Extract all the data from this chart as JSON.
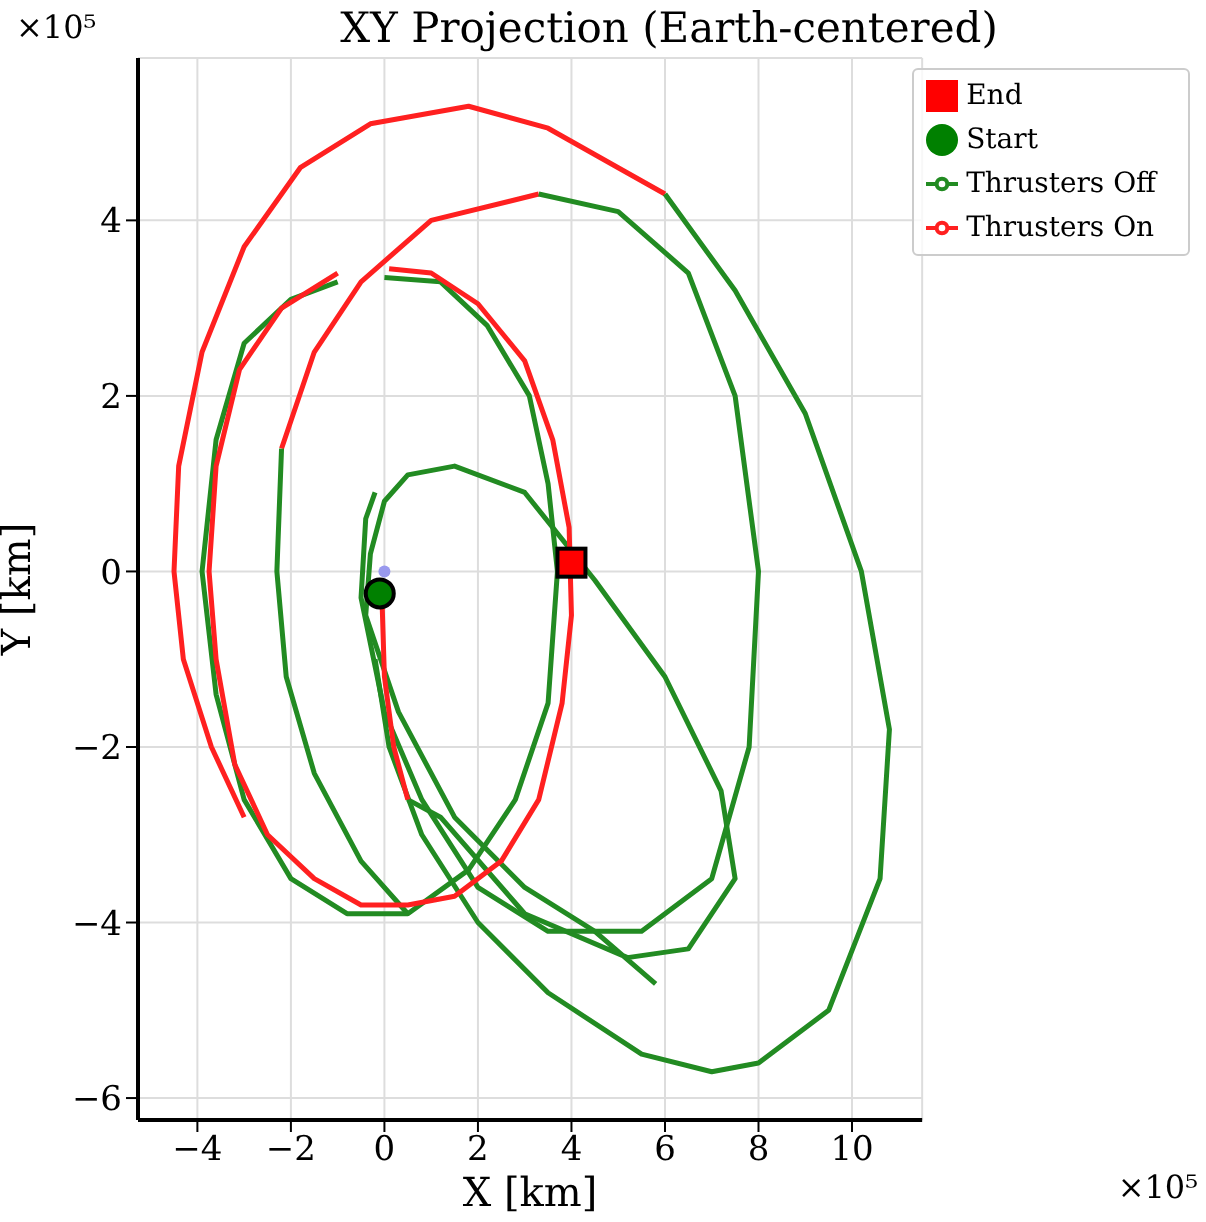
{
  "chart_data": {
    "type": "line",
    "title": "XY Projection (Earth-centered)",
    "xlabel": "X [km]",
    "ylabel": "Y [km]",
    "xlim": [
      -5.27,
      11.5
    ],
    "ylim": [
      -6.25,
      5.85
    ],
    "xticks": [
      -4,
      -2,
      0,
      2,
      4,
      6,
      8,
      10
    ],
    "yticks": [
      -6,
      -4,
      -2,
      0,
      2,
      4
    ],
    "grid": true,
    "legend": "top right",
    "marker": "none",
    "annotations": [
      "×10⁵",
      "×10⁵"
    ],
    "series": [
      {
        "name": "Thrusters Off",
        "color": "#228b22",
        "x": [
          0.5,
          1.2,
          3.0,
          5.2,
          6.5,
          7.5,
          7.2,
          6.0,
          4.5,
          3.0,
          1.5,
          0.5,
          0,
          -0.3,
          -0.4,
          0.3,
          1.5,
          3.0,
          4.5,
          5.8
        ],
        "values": [
          -2.6,
          -2.8,
          -3.9,
          -4.4,
          -4.3,
          -3.5,
          -2.5,
          -1.2,
          -0.1,
          0.9,
          1.2,
          1.1,
          0.8,
          0.2,
          -0.5,
          -1.6,
          -2.8,
          -3.6,
          -4.1,
          -4.7
        ]
      },
      {
        "name": "Thrusters On",
        "color": "#ff2020",
        "x": [
          -3.0,
          -3.7,
          -4.3,
          -4.5,
          -4.4,
          -3.9,
          -3.0,
          -1.8,
          -0.3,
          1.8,
          3.5,
          5.0,
          6.0
        ],
        "values": [
          -2.8,
          -2.0,
          -1.0,
          0,
          1.2,
          2.5,
          3.7,
          4.6,
          5.1,
          5.3,
          5.05,
          4.6,
          4.3
        ]
      },
      {
        "color": "#228b22",
        "x": [
          6.0,
          7.5,
          9.0,
          10.2,
          10.8,
          10.6,
          9.5,
          8.0,
          7.0,
          5.5,
          3.5,
          2.0,
          0.8,
          0.1,
          -0.2
        ],
        "values": [
          4.3,
          3.2,
          1.8,
          0,
          -1.8,
          -3.5,
          -5.0,
          -5.6,
          -5.7,
          -5.5,
          -4.8,
          -4.0,
          -3.0,
          -2.0,
          -1.0
        ]
      },
      {
        "color": "#ff2020",
        "x": [
          -2.2,
          -1.5,
          -0.5,
          1.0,
          3.3
        ],
        "values": [
          1.4,
          2.5,
          3.3,
          4.0,
          4.3
        ]
      },
      {
        "color": "#228b22",
        "x": [
          3.3,
          5.0,
          6.5,
          7.5,
          8.0,
          7.8,
          7.0,
          5.5,
          3.5,
          2.0,
          0.8,
          0,
          -0.5,
          -0.4,
          -0.2
        ],
        "values": [
          4.3,
          4.1,
          3.4,
          2.0,
          0,
          -2.0,
          -3.5,
          -4.1,
          -4.1,
          -3.6,
          -2.6,
          -1.6,
          -0.3,
          0.6,
          0.9
        ]
      },
      {
        "color": "#228b22",
        "x": [
          -2.2,
          -2.3,
          -2.1,
          -1.5,
          -0.5,
          0.5
        ],
        "values": [
          1.4,
          0,
          -1.2,
          -2.3,
          -3.3,
          -3.9
        ]
      },
      {
        "color": "#228b22",
        "x": [
          0,
          1.2,
          2.2,
          3.1,
          3.5,
          3.7,
          3.5,
          2.8,
          1.8,
          0.5,
          -0.8,
          -2.0,
          -3.0,
          -3.6,
          -3.9,
          -3.6,
          -3.0,
          -2.0,
          -1.0
        ],
        "values": [
          3.35,
          3.3,
          2.8,
          2.0,
          1.0,
          0,
          -1.5,
          -2.6,
          -3.4,
          -3.9,
          -3.9,
          -3.5,
          -2.6,
          -1.4,
          0,
          1.5,
          2.6,
          3.1,
          3.3
        ]
      },
      {
        "color": "#ff2020",
        "x": [
          0.1,
          1.0,
          2.0,
          3.0,
          3.6,
          3.95,
          4.0,
          3.8,
          3.3,
          2.5,
          1.5,
          0.5,
          -0.5,
          -1.5,
          -2.5,
          -3.2,
          -3.6,
          -3.75,
          -3.6,
          -3.1,
          -2.2,
          -1.0
        ],
        "values": [
          3.45,
          3.4,
          3.05,
          2.4,
          1.5,
          0.5,
          -0.5,
          -1.5,
          -2.6,
          -3.3,
          -3.7,
          -3.8,
          -3.8,
          -3.5,
          -3.0,
          -2.2,
          -1.0,
          0,
          1.2,
          2.3,
          3.0,
          3.4
        ]
      },
      {
        "color": "#ff2020",
        "x": [
          -0.05,
          0,
          0.2,
          0.5
        ],
        "values": [
          -0.35,
          -1.2,
          -2.0,
          -2.6
        ]
      },
      {
        "type": "scatter",
        "color": "#9999ee",
        "marker": "circle",
        "x": [
          0
        ],
        "values": [
          0
        ]
      },
      {
        "type": "scatter",
        "name": "Start",
        "color": "#008000",
        "marker": "circle",
        "x": [
          -0.1
        ],
        "values": [
          -0.25
        ]
      },
      {
        "type": "scatter",
        "name": "End",
        "color": "#ff0000",
        "marker": "square",
        "x": [
          4.0
        ],
        "values": [
          0.1
        ]
      }
    ]
  }
}
